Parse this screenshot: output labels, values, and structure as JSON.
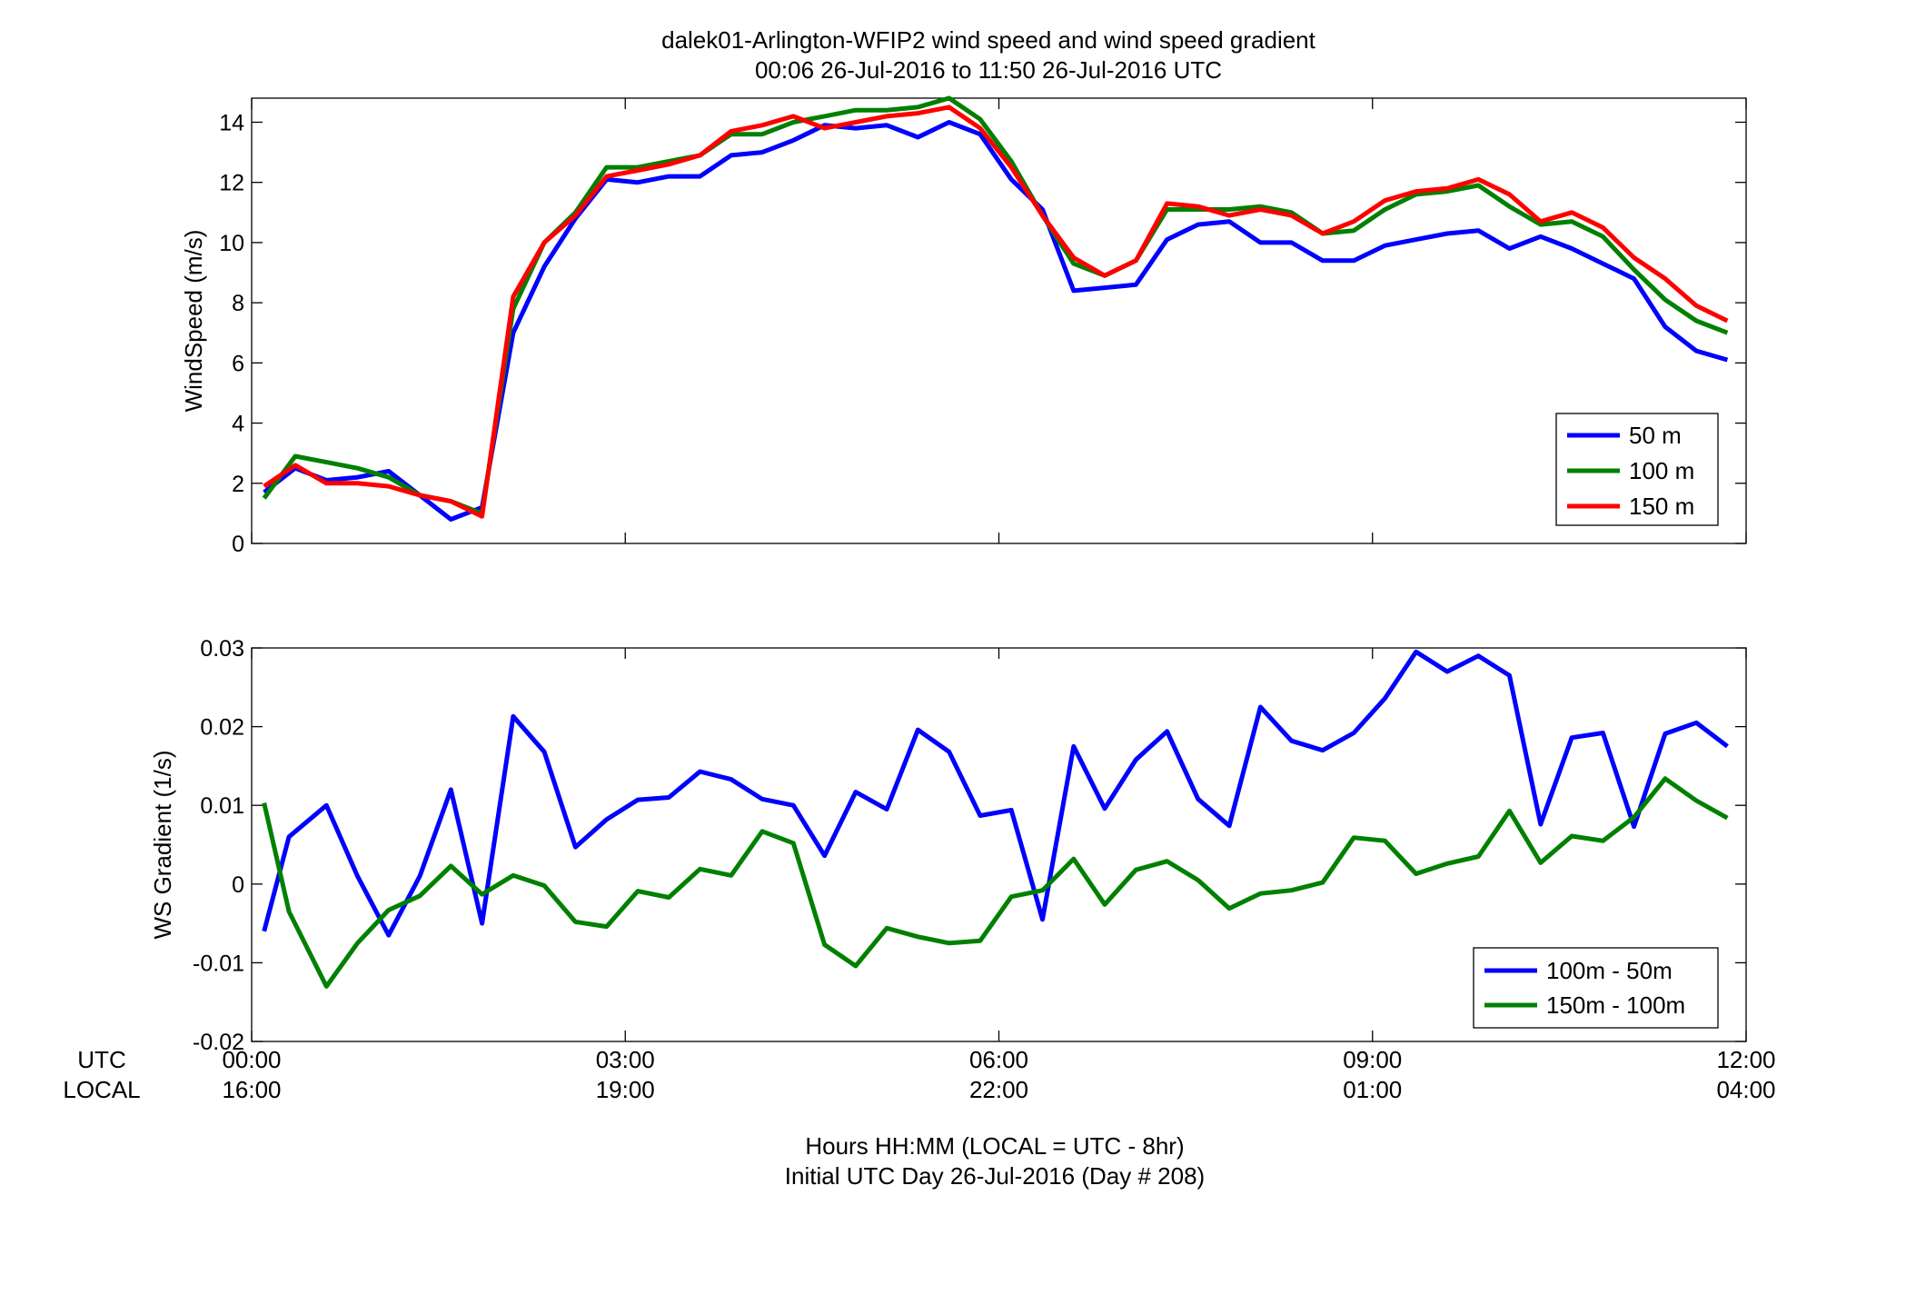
{
  "title_line1": "dalek01-Arlington-WFIP2  wind speed and wind speed gradient",
  "title_line2": "00:06 26-Jul-2016 to 11:50 26-Jul-2016  UTC",
  "xaxis": {
    "utc_label": "UTC",
    "local_label": "LOCAL",
    "utc_ticks": [
      "00:00",
      "03:00",
      "06:00",
      "09:00",
      "12:00"
    ],
    "local_ticks": [
      "16:00",
      "19:00",
      "22:00",
      "01:00",
      "04:00"
    ],
    "footer_line1": "Hours HH:MM  (LOCAL = UTC - 8hr)",
    "footer_line2": "Initial UTC Day 26-Jul-2016 (Day # 208)"
  },
  "chart_data": [
    {
      "type": "line",
      "ylabel": "WindSpeed (m/s)",
      "xlim": [
        0,
        12
      ],
      "ylim": [
        0,
        14.8
      ],
      "yticks": [
        0,
        2,
        4,
        6,
        8,
        10,
        12,
        14
      ],
      "xticks": [
        0,
        3,
        6,
        9,
        12
      ],
      "legend_position": "bottom-right",
      "x": [
        0.1,
        0.35,
        0.6,
        0.85,
        1.1,
        1.35,
        1.6,
        1.85,
        2.1,
        2.35,
        2.6,
        2.85,
        3.1,
        3.35,
        3.6,
        3.85,
        4.1,
        4.35,
        4.6,
        4.85,
        5.1,
        5.35,
        5.6,
        5.85,
        6.1,
        6.35,
        6.6,
        6.85,
        7.1,
        7.35,
        7.6,
        7.85,
        8.1,
        8.35,
        8.6,
        8.85,
        9.1,
        9.35,
        9.6,
        9.85,
        10.1,
        10.35,
        10.6,
        10.85,
        11.1,
        11.35,
        11.6,
        11.85
      ],
      "series": [
        {
          "name": "50 m",
          "color": "#0000ff",
          "values": [
            1.7,
            2.5,
            2.1,
            2.2,
            2.4,
            1.6,
            0.8,
            1.2,
            7.0,
            9.2,
            10.8,
            12.1,
            12.0,
            12.2,
            12.2,
            12.9,
            13.0,
            13.4,
            13.9,
            13.8,
            13.9,
            13.5,
            14.0,
            13.6,
            12.1,
            11.1,
            8.4,
            8.5,
            8.6,
            10.1,
            10.6,
            10.7,
            10.0,
            10.0,
            9.4,
            9.4,
            9.9,
            10.1,
            10.3,
            10.4,
            9.8,
            10.2,
            9.8,
            9.3,
            8.8,
            7.2,
            6.4,
            6.1
          ]
        },
        {
          "name": "100 m",
          "color": "#008000",
          "values": [
            1.5,
            2.9,
            2.7,
            2.5,
            2.2,
            1.6,
            1.4,
            1.0,
            7.8,
            10.0,
            11.0,
            12.5,
            12.5,
            12.7,
            12.9,
            13.6,
            13.6,
            14.0,
            14.2,
            14.4,
            14.4,
            14.5,
            14.8,
            14.1,
            12.7,
            10.9,
            9.3,
            8.9,
            9.4,
            11.1,
            11.1,
            11.1,
            11.2,
            11.0,
            10.3,
            10.4,
            11.1,
            11.6,
            11.7,
            11.9,
            11.2,
            10.6,
            10.7,
            10.2,
            9.1,
            8.1,
            7.4,
            7.0
          ]
        },
        {
          "name": "150 m",
          "color": "#ff0000",
          "values": [
            1.9,
            2.6,
            2.0,
            2.0,
            1.9,
            1.6,
            1.4,
            0.9,
            8.2,
            10.0,
            10.9,
            12.2,
            12.4,
            12.6,
            12.9,
            13.7,
            13.9,
            14.2,
            13.8,
            14.0,
            14.2,
            14.3,
            14.5,
            13.8,
            12.5,
            10.9,
            9.5,
            8.9,
            9.4,
            11.3,
            11.2,
            10.9,
            11.1,
            10.9,
            10.3,
            10.7,
            11.4,
            11.7,
            11.8,
            12.1,
            11.6,
            10.7,
            11.0,
            10.5,
            9.5,
            8.8,
            7.9,
            7.4
          ]
        }
      ]
    },
    {
      "type": "line",
      "ylabel": "WS Gradient (1/s)",
      "xlim": [
        0,
        12
      ],
      "ylim": [
        -0.02,
        0.03
      ],
      "yticks": [
        -0.02,
        -0.01,
        0,
        0.01,
        0.02,
        0.03
      ],
      "ytick_labels": [
        "-0.02",
        "-0.01",
        "0",
        "0.01",
        "0.02",
        "0.03"
      ],
      "xticks": [
        0,
        3,
        6,
        9,
        12
      ],
      "legend_position": "bottom-right",
      "x": [
        0.1,
        0.3,
        0.6,
        0.85,
        1.1,
        1.35,
        1.6,
        1.85,
        2.1,
        2.35,
        2.6,
        2.85,
        3.1,
        3.35,
        3.6,
        3.85,
        4.1,
        4.35,
        4.6,
        4.85,
        5.1,
        5.35,
        5.6,
        5.85,
        6.1,
        6.35,
        6.6,
        6.85,
        7.1,
        7.35,
        7.6,
        7.85,
        8.1,
        8.35,
        8.6,
        8.85,
        9.1,
        9.35,
        9.6,
        9.85,
        10.1,
        10.35,
        10.6,
        10.85,
        11.1,
        11.35,
        11.6,
        11.85
      ],
      "series": [
        {
          "name": "100m - 50m",
          "color": "#0000ff",
          "values": [
            -0.006,
            0.006,
            0.01,
            0.001,
            -0.0065,
            0.001,
            0.012,
            -0.005,
            0.0213,
            0.0168,
            0.0047,
            0.0082,
            0.0107,
            0.011,
            0.0143,
            0.0133,
            0.0108,
            0.01,
            0.0036,
            0.0117,
            0.0095,
            0.0196,
            0.0168,
            0.0087,
            0.0094,
            -0.0045,
            0.0175,
            0.0096,
            0.0158,
            0.0194,
            0.0108,
            0.0074,
            0.0225,
            0.0182,
            0.017,
            0.0192,
            0.0236,
            0.0295,
            0.027,
            0.029,
            0.0265,
            0.0076,
            0.0186,
            0.0192,
            0.0073,
            0.0191,
            0.0205,
            0.0175
          ]
        },
        {
          "name": "150m - 100m",
          "color": "#008000",
          "values": [
            0.0103,
            -0.0035,
            -0.013,
            -0.0075,
            -0.0033,
            -0.0015,
            0.0023,
            -0.0013,
            0.0011,
            -0.0002,
            -0.0048,
            -0.0054,
            -0.0009,
            -0.0017,
            0.0019,
            0.0011,
            0.0067,
            0.0052,
            -0.0077,
            -0.0104,
            -0.0056,
            -0.0067,
            -0.0075,
            -0.0072,
            -0.0016,
            -0.0008,
            0.0032,
            -0.0026,
            0.0018,
            0.0029,
            0.0005,
            -0.0031,
            -0.0012,
            -0.0008,
            0.0002,
            0.0059,
            0.0055,
            0.0013,
            0.0026,
            0.0035,
            0.0093,
            0.0027,
            0.0061,
            0.0055,
            0.0085,
            0.0134,
            0.0106,
            0.0084
          ]
        }
      ]
    }
  ]
}
